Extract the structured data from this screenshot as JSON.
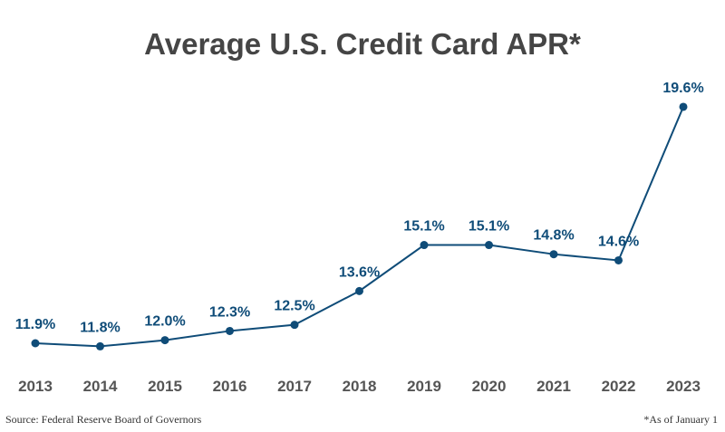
{
  "chart_data": {
    "type": "line",
    "title": "Average U.S. Credit Card APR*",
    "categories": [
      "2013",
      "2014",
      "2015",
      "2016",
      "2017",
      "2018",
      "2019",
      "2020",
      "2021",
      "2022",
      "2023"
    ],
    "values": [
      11.9,
      11.8,
      12.0,
      12.3,
      12.5,
      13.6,
      15.1,
      15.1,
      14.8,
      14.6,
      19.6
    ],
    "data_labels": [
      "11.9%",
      "11.8%",
      "12.0%",
      "12.3%",
      "12.5%",
      "13.6%",
      "15.1%",
      "15.1%",
      "14.8%",
      "14.6%",
      "19.6%"
    ],
    "xlabel": "",
    "ylabel": "",
    "grid": false,
    "colors": {
      "line": "#0f4c78",
      "title": "#454545",
      "axis_text": "#555555"
    }
  },
  "footer": {
    "source": "Source: Federal Reserve Board of Governors",
    "note": "*As of January 1"
  }
}
